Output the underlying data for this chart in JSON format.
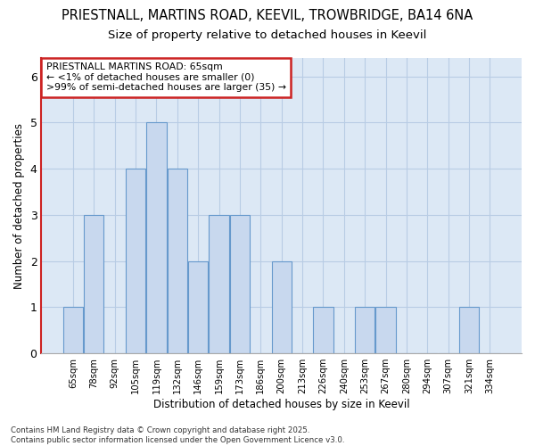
{
  "title_line1": "PRIESTNALL, MARTINS ROAD, KEEVIL, TROWBRIDGE, BA14 6NA",
  "title_line2": "Size of property relative to detached houses in Keevil",
  "xlabel": "Distribution of detached houses by size in Keevil",
  "ylabel": "Number of detached properties",
  "categories": [
    "65sqm",
    "78sqm",
    "92sqm",
    "105sqm",
    "119sqm",
    "132sqm",
    "146sqm",
    "159sqm",
    "173sqm",
    "186sqm",
    "200sqm",
    "213sqm",
    "226sqm",
    "240sqm",
    "253sqm",
    "267sqm",
    "280sqm",
    "294sqm",
    "307sqm",
    "321sqm",
    "334sqm"
  ],
  "values": [
    1,
    3,
    0,
    4,
    5,
    4,
    2,
    3,
    3,
    0,
    2,
    0,
    1,
    0,
    1,
    1,
    0,
    0,
    0,
    1,
    0
  ],
  "highlight_index": 0,
  "bar_color": "#c8d8ee",
  "bar_edge_color": "#6699cc",
  "highlight_spine_color": "#cc2222",
  "annotation_text": "PRIESTNALL MARTINS ROAD: 65sqm\n← <1% of detached houses are smaller (0)\n>99% of semi-detached houses are larger (35) →",
  "annotation_box_color": "#ffffff",
  "annotation_box_edge_color": "#cc2222",
  "footer_text": "Contains HM Land Registry data © Crown copyright and database right 2025.\nContains public sector information licensed under the Open Government Licence v3.0.",
  "ylim": [
    0,
    6.4
  ],
  "yticks": [
    0,
    1,
    2,
    3,
    4,
    5,
    6
  ],
  "bg_color": "#ffffff",
  "plot_bg_color": "#dce8f5",
  "grid_color": "#b8cce4",
  "figsize": [
    6.0,
    5.0
  ],
  "dpi": 100
}
